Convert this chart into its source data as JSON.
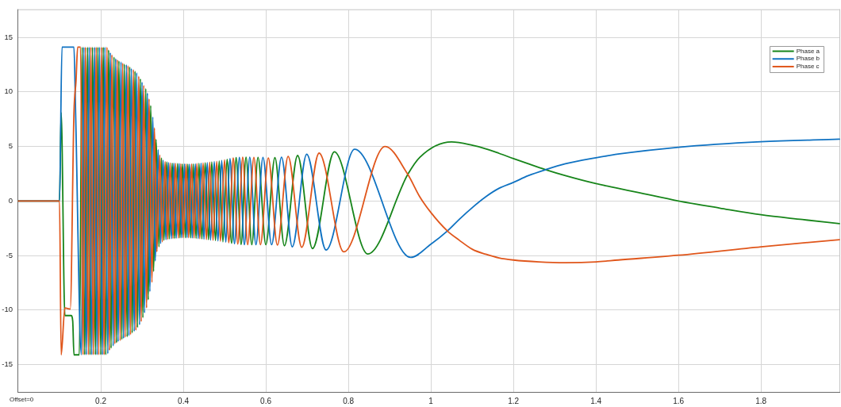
{
  "chart_data": {
    "type": "line",
    "series": [
      {
        "name": "Phase a",
        "color": "#17851a",
        "x": [
          0,
          0.1,
          0.104,
          0.113,
          0.128,
          0.132,
          0.135,
          0.148,
          0.155,
          0.161,
          0.168,
          0.174,
          0.18,
          0.187,
          0.193,
          0.2,
          0.206,
          0.212,
          0.219,
          0.225,
          0.232,
          0.238,
          0.244,
          0.251,
          0.257,
          0.264,
          0.27,
          0.276,
          0.283,
          0.289,
          0.296,
          0.302,
          0.309,
          0.315,
          0.321,
          0.328,
          0.334,
          0.341,
          0.347,
          0.353,
          0.36,
          0.366,
          0.373,
          0.379,
          0.386,
          0.392,
          0.398,
          0.405,
          0.411,
          0.418,
          0.424,
          0.431,
          0.438,
          0.445,
          0.453,
          0.461,
          0.469,
          0.478,
          0.487,
          0.496,
          0.506,
          0.517,
          0.528,
          0.54,
          0.552,
          0.566,
          0.581,
          0.6,
          0.622,
          0.645,
          0.677,
          0.713,
          0.766,
          0.847,
          0.944,
          0.973,
          1.05,
          1.101,
          1.133,
          1.165,
          1.2,
          1.236,
          1.278,
          1.326,
          1.4,
          1.454,
          1.5,
          1.6,
          1.7,
          1.8,
          1.9,
          1.99
        ],
        "values": [
          0,
          0,
          8.1,
          -10.5,
          -10.5,
          -11,
          -14.1,
          -14.1,
          14.1,
          -14.1,
          14.1,
          -14.1,
          14.1,
          -14.1,
          14.1,
          -14.1,
          14.1,
          -14.1,
          13.85,
          -13.5,
          13.2,
          -13,
          12.85,
          -12.7,
          12.55,
          -12.45,
          12.3,
          -12.1,
          11.9,
          -11.6,
          11.2,
          -10.7,
          10.3,
          -9.05,
          8.75,
          -6.45,
          5.65,
          -4.2,
          3.95,
          -3.6,
          3.58,
          -3.48,
          3.47,
          -3.43,
          3.44,
          -3.38,
          3.4,
          -3.36,
          3.38,
          -3.38,
          3.4,
          -3.42,
          3.45,
          -3.48,
          3.51,
          -3.55,
          3.58,
          -3.63,
          3.66,
          -3.74,
          3.82,
          -3.87,
          3.97,
          -3.98,
          4.02,
          -4,
          4,
          -4,
          3.97,
          -4.1,
          4.17,
          -4.36,
          4.51,
          -4.85,
          2.44,
          4,
          5.41,
          5.1,
          4.78,
          4.37,
          3.89,
          3.41,
          2.87,
          2.32,
          1.59,
          1.16,
          0.8,
          0,
          -0.65,
          -1.26,
          -1.7,
          -2.08
        ]
      },
      {
        "name": "Phase b",
        "color": "#0f72c2",
        "x": [
          0,
          0.1,
          0.106,
          0.135,
          0.139,
          0.153,
          0.159,
          0.165,
          0.172,
          0.178,
          0.185,
          0.191,
          0.197,
          0.204,
          0.21,
          0.217,
          0.223,
          0.23,
          0.236,
          0.242,
          0.249,
          0.255,
          0.262,
          0.268,
          0.274,
          0.281,
          0.287,
          0.294,
          0.3,
          0.306,
          0.313,
          0.319,
          0.326,
          0.332,
          0.339,
          0.345,
          0.351,
          0.358,
          0.364,
          0.371,
          0.377,
          0.383,
          0.39,
          0.396,
          0.403,
          0.409,
          0.415,
          0.422,
          0.429,
          0.436,
          0.443,
          0.45,
          0.458,
          0.466,
          0.475,
          0.484,
          0.493,
          0.503,
          0.513,
          0.524,
          0.536,
          0.548,
          0.561,
          0.576,
          0.593,
          0.614,
          0.638,
          0.664,
          0.699,
          0.746,
          0.815,
          0.951,
          1,
          1.04,
          1.069,
          1.101,
          1.133,
          1.165,
          1.2,
          1.236,
          1.278,
          1.326,
          1.4,
          1.454,
          1.6,
          1.8,
          1.99
        ],
        "values": [
          0,
          0,
          14.1,
          14.1,
          8.1,
          -14.1,
          14.1,
          -14.1,
          14.1,
          -14.1,
          14.1,
          -14.1,
          14.1,
          -14.1,
          14.1,
          -14,
          13.6,
          -13.3,
          13.05,
          -12.9,
          12.75,
          -12.6,
          12.5,
          -12.35,
          12.15,
          -11.95,
          11.75,
          -11.35,
          10.9,
          -10.25,
          9.9,
          -8.3,
          7.7,
          -5.5,
          4.7,
          -3.9,
          3.75,
          -3.55,
          3.53,
          -3.45,
          3.46,
          -3.41,
          3.43,
          -3.37,
          3.4,
          -3.37,
          3.38,
          -3.39,
          3.42,
          -3.44,
          3.47,
          -3.5,
          3.53,
          -3.58,
          3.61,
          -3.66,
          3.72,
          -3.78,
          3.88,
          -3.91,
          4,
          -4,
          4.02,
          -4,
          4,
          -4,
          4.02,
          -4.2,
          4.29,
          -4.49,
          4.75,
          -5.17,
          -3.96,
          -2.75,
          -1.67,
          -0.58,
          0.39,
          1.16,
          1.71,
          2.32,
          2.87,
          3.41,
          3.96,
          4.3,
          4.93,
          5.43,
          5.67
        ]
      },
      {
        "name": "Phase c",
        "color": "#e0561b",
        "x": [
          0,
          0.1,
          0.104,
          0.113,
          0.126,
          0.135,
          0.14,
          0.144,
          0.151,
          0.157,
          0.163,
          0.17,
          0.176,
          0.182,
          0.189,
          0.195,
          0.202,
          0.208,
          0.215,
          0.221,
          0.227,
          0.234,
          0.24,
          0.247,
          0.253,
          0.259,
          0.266,
          0.272,
          0.279,
          0.285,
          0.292,
          0.298,
          0.304,
          0.311,
          0.317,
          0.324,
          0.33,
          0.336,
          0.343,
          0.349,
          0.356,
          0.362,
          0.368,
          0.375,
          0.381,
          0.388,
          0.394,
          0.4,
          0.407,
          0.413,
          0.42,
          0.426,
          0.433,
          0.44,
          0.448,
          0.456,
          0.464,
          0.472,
          0.481,
          0.49,
          0.5,
          0.51,
          0.521,
          0.532,
          0.544,
          0.556,
          0.571,
          0.587,
          0.606,
          0.628,
          0.654,
          0.687,
          0.729,
          0.789,
          0.889,
          0.944,
          0.973,
          1,
          1.04,
          1.069,
          1.101,
          1.133,
          1.165,
          1.2,
          1.262,
          1.326,
          1.4,
          1.454,
          1.6,
          1.8,
          1.99
        ],
        "values": [
          0,
          0,
          -14.1,
          -9.8,
          -9.9,
          8.1,
          11,
          14.1,
          14.1,
          -14.1,
          14.1,
          -14.1,
          14.1,
          -14.1,
          14.1,
          -14.1,
          14.1,
          -14.1,
          14.1,
          -13.7,
          13.4,
          -13.1,
          12.95,
          -12.8,
          12.65,
          -12.5,
          12.4,
          -12.25,
          12.05,
          -11.85,
          11.45,
          -11.05,
          10.6,
          -9.8,
          9.35,
          -7.45,
          6.7,
          -4.65,
          4.22,
          -3.75,
          3.62,
          -3.52,
          3.48,
          -3.43,
          3.45,
          -3.4,
          3.42,
          -3.36,
          3.39,
          -3.37,
          3.39,
          -3.4,
          3.44,
          -3.46,
          3.49,
          -3.53,
          3.56,
          -3.6,
          3.63,
          -3.69,
          3.77,
          -3.83,
          3.94,
          -3.95,
          4.02,
          -4,
          4,
          -4,
          3.95,
          -4.04,
          4.09,
          -4.24,
          4.39,
          -4.66,
          5,
          2.44,
          0.39,
          -1.06,
          -2.75,
          -3.6,
          -4.44,
          -4.88,
          -5.22,
          -5.41,
          -5.58,
          -5.65,
          -5.58,
          -5.41,
          -4.97,
          -4.2,
          -3.54
        ]
      }
    ],
    "xlim": [
      0,
      1.99
    ],
    "xticks": [
      {
        "value": 0,
        "label": null
      },
      0.2,
      0.4,
      0.6,
      0.8,
      1,
      1.2,
      1.4,
      1.6,
      1.8
    ],
    "ylim": [
      -17.5,
      17.5
    ],
    "yticks": [
      -15,
      -10,
      -5,
      0,
      5,
      10,
      15
    ],
    "grid": true,
    "legend": "top right",
    "annotations": [
      "Offset=0"
    ]
  }
}
